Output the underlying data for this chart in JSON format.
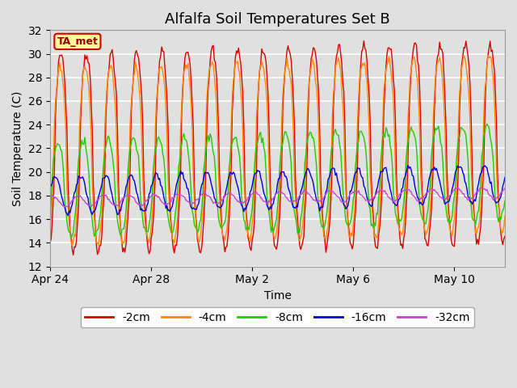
{
  "title": "Alfalfa Soil Temperatures Set B",
  "xlabel": "Time",
  "ylabel": "Soil Temperature (C)",
  "ylim": [
    12,
    32
  ],
  "yticks": [
    12,
    14,
    16,
    18,
    20,
    22,
    24,
    26,
    28,
    30,
    32
  ],
  "xtick_labels": [
    "Apr 24",
    "Apr 28",
    "May 2",
    "May 6",
    "May 10"
  ],
  "bg_color": "#e0e0e0",
  "fig_color": "#e0e0e0",
  "colors": {
    "-2cm": "#dd0000",
    "-4cm": "#ff8800",
    "-8cm": "#22cc00",
    "-16cm": "#0000dd",
    "-32cm": "#cc44cc"
  },
  "annotation_text": "TA_met",
  "annotation_bg": "#ffff99",
  "annotation_border": "#cc0000",
  "title_fontsize": 13,
  "label_fontsize": 10,
  "tick_fontsize": 10,
  "legend_fontsize": 10
}
